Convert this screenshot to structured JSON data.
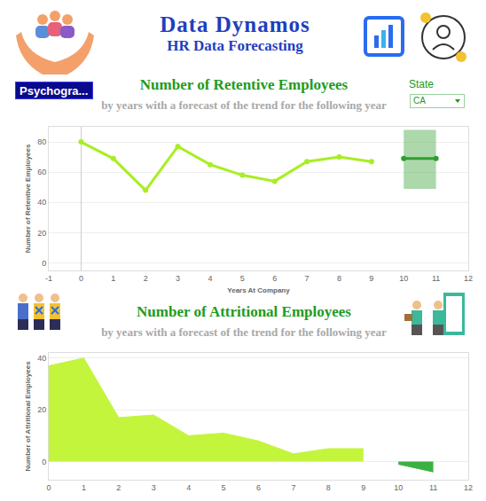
{
  "header": {
    "title": "Data Dynamos",
    "subtitle": "HR Data Forecasting",
    "button": "Psychogra..."
  },
  "filter": {
    "label": "State",
    "value": "CA"
  },
  "chart_data": [
    {
      "type": "line",
      "title": "Number of  Retentive Employees",
      "subtitle": "by years with a forecast of the trend for the following year",
      "x_label": "Years At Company",
      "y_label": "Number of Retentive Employees",
      "x": [
        0,
        1,
        2,
        3,
        4,
        5,
        6,
        7,
        8,
        9
      ],
      "values": [
        80,
        69,
        48,
        77,
        65,
        58,
        54,
        67,
        70,
        67
      ],
      "color": "#a8ee22",
      "marker": "circle",
      "forecast": {
        "x": [
          10,
          11
        ],
        "values": [
          69,
          69
        ],
        "lower": [
          49,
          49
        ],
        "upper": [
          88,
          88
        ],
        "color": "#2f9e2f",
        "marker": "circle"
      },
      "xlim": [
        -1,
        12
      ],
      "xticks": [
        -1,
        0,
        1,
        2,
        3,
        4,
        5,
        6,
        7,
        8,
        9,
        10,
        11,
        12
      ],
      "ylim": [
        -5,
        90
      ],
      "yticks": [
        0,
        20,
        40,
        60,
        80
      ],
      "grid": true
    },
    {
      "type": "area",
      "title": "Number of Attritional Employees",
      "subtitle": "by years with a forecast of the trend for the following year",
      "y_label": "Number of Attritional Employees",
      "x": [
        0,
        1,
        2,
        3,
        4,
        5,
        6,
        7,
        8,
        9
      ],
      "values": [
        37,
        40,
        17,
        18,
        10,
        11,
        8,
        3,
        5,
        5
      ],
      "color": "#c3f53c",
      "forecast": {
        "x": [
          10,
          11
        ],
        "values": [
          -1,
          -4
        ],
        "color": "#3cb043"
      },
      "xlim": [
        0,
        12
      ],
      "xticks": [
        0,
        1,
        2,
        3,
        4,
        5,
        6,
        7,
        8,
        9,
        10,
        11,
        12
      ],
      "ylim": [
        -7,
        42
      ],
      "yticks": [
        0,
        20,
        40
      ],
      "grid": true
    }
  ]
}
